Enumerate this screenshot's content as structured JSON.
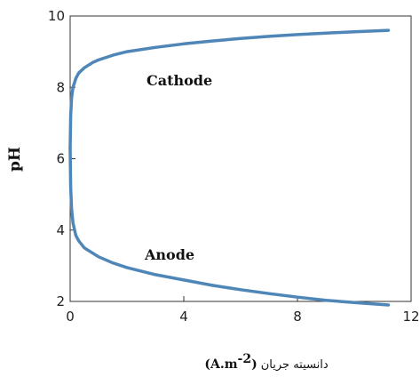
{
  "chart_data": {
    "type": "line",
    "xlabel_text": "دانسیته جریان",
    "xlabel_unit_main": "(A.m",
    "xlabel_unit_sup": "-2",
    "xlabel_unit_close": ")",
    "ylabel": "pH",
    "xlim": [
      0,
      12
    ],
    "ylim": [
      2,
      10
    ],
    "x_ticks": [
      "0",
      "4",
      "8",
      "12"
    ],
    "x_tick_values": [
      0,
      4,
      8,
      12
    ],
    "y_ticks": [
      "2",
      "4",
      "6",
      "8",
      "10"
    ],
    "y_tick_values": [
      2,
      4,
      6,
      8,
      10
    ],
    "grid": false,
    "series": [
      {
        "name": "Cathode",
        "color": "#4f86b8",
        "x": [
          0,
          0.02,
          0.05,
          0.1,
          0.2,
          0.3,
          0.5,
          0.8,
          1,
          1.5,
          2,
          3,
          4,
          5,
          6,
          7,
          8,
          9,
          10,
          11.2
        ],
        "y": [
          6.3,
          7.2,
          7.7,
          8.0,
          8.25,
          8.4,
          8.55,
          8.7,
          8.77,
          8.9,
          9.0,
          9.12,
          9.22,
          9.3,
          9.37,
          9.43,
          9.48,
          9.52,
          9.56,
          9.6
        ]
      },
      {
        "name": "Anode",
        "color": "#4f86b8",
        "x": [
          0,
          0.02,
          0.05,
          0.1,
          0.2,
          0.3,
          0.5,
          0.8,
          1,
          1.5,
          2,
          3,
          4,
          5,
          6,
          7,
          8,
          9,
          10,
          11.2
        ],
        "y": [
          6.3,
          5.2,
          4.6,
          4.2,
          3.85,
          3.7,
          3.5,
          3.35,
          3.25,
          3.08,
          2.95,
          2.75,
          2.6,
          2.45,
          2.33,
          2.22,
          2.12,
          2.03,
          1.97,
          1.9
        ]
      }
    ],
    "annotations": [
      "Cathode",
      "Anode"
    ]
  }
}
